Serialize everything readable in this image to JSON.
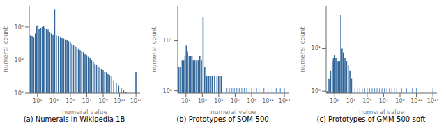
{
  "chart_data": [
    {
      "type": "bar",
      "title": "(a) Numerals in Wikipedia 1B",
      "x_label": "numeral value",
      "y_label": "numeral count",
      "log": "y",
      "grid": false,
      "xlim": [
        0.0,
        13.5
      ],
      "xticks": [
        {
          "value": 1,
          "label": "10¹"
        },
        {
          "value": 3,
          "label": "10³"
        },
        {
          "value": 5,
          "label": "10⁵"
        },
        {
          "value": 7,
          "label": "10⁷"
        },
        {
          "value": 9,
          "label": "10⁹"
        },
        {
          "value": 11,
          "label": "10¹¹"
        },
        {
          "value": 13,
          "label": "10¹³"
        }
      ],
      "ylim": [
        100.0,
        20000000.0
      ],
      "yticks": [
        {
          "value": 100,
          "label": "10²"
        },
        {
          "value": 10000,
          "label": "10⁴"
        },
        {
          "value": 1000000,
          "label": "10⁶"
        }
      ],
      "series": [
        {
          "type": "bar",
          "color": "#336699",
          "x": [
            0.15,
            0.35,
            0.55,
            0.75,
            0.9,
            1.05,
            1.2,
            1.4,
            1.6,
            1.75,
            1.9,
            2.1,
            2.3,
            2.5,
            2.7,
            2.9,
            3.1,
            3.3,
            3.55,
            3.8,
            4.0,
            4.2,
            4.4,
            4.6,
            4.8,
            5.0,
            5.2,
            5.4,
            5.6,
            5.8,
            6.0,
            6.2,
            6.4,
            6.6,
            6.8,
            7.0,
            7.2,
            7.4,
            7.6,
            7.8,
            8.0,
            8.2,
            8.4,
            8.6,
            8.8,
            9.0,
            9.2,
            9.4,
            9.6,
            9.8,
            10.0,
            10.3,
            10.6,
            10.9,
            11.2,
            11.5,
            11.8,
            12.1,
            12.5,
            13.0
          ],
          "values": [
            300000.0,
            280000.0,
            250000.0,
            400000.0,
            1100000.0,
            1300000.0,
            800000.0,
            900000.0,
            1000000.0,
            1100000.0,
            900000.0,
            800000.0,
            700000.0,
            500000.0,
            400000.0,
            350000.0,
            12000000.0,
            300000.0,
            280000.0,
            250000.0,
            220000.0,
            200000.0,
            180000.0,
            160000.0,
            140000.0,
            120000.0,
            100000.0,
            80000.0,
            70000.0,
            60000.0,
            50000.0,
            40000.0,
            35000.0,
            30000.0,
            25000.0,
            20000.0,
            16000.0,
            13000.0,
            10000.0,
            8000.0,
            6000.0,
            5000.0,
            4000.0,
            3500.0,
            3000.0,
            2500.0,
            2000.0,
            1800.0,
            1500.0,
            1200.0,
            1000.0,
            600.0,
            400.0,
            300.0,
            200.0,
            150.0,
            120.0,
            100.0,
            100.0,
            2000.0
          ]
        }
      ]
    },
    {
      "type": "bar",
      "title": "(b) Prototypes of SOM-500",
      "x_label": "numeral value",
      "y_label": "numeral count",
      "log": "y",
      "grid": false,
      "xlim": [
        0.0,
        13.5
      ],
      "xticks": [
        {
          "value": 1,
          "label": "10¹"
        },
        {
          "value": 3,
          "label": "10³"
        },
        {
          "value": 5,
          "label": "10⁵"
        },
        {
          "value": 7,
          "label": "10⁷"
        },
        {
          "value": 9,
          "label": "10⁹"
        },
        {
          "value": 11,
          "label": "10¹¹"
        },
        {
          "value": 13,
          "label": "10¹³"
        }
      ],
      "ylim": [
        0.9,
        50
      ],
      "yticks": [
        {
          "value": 1,
          "label": "10⁰"
        },
        {
          "value": 10,
          "label": "10¹"
        }
      ],
      "series": [
        {
          "type": "bar",
          "color": "#336699",
          "x": [
            0.15,
            0.35,
            0.55,
            0.75,
            0.9,
            1.05,
            1.2,
            1.4,
            1.6,
            1.75,
            1.9,
            2.1,
            2.3,
            2.5,
            2.7,
            2.9,
            3.1,
            3.3,
            3.55,
            3.8,
            4.0,
            4.2,
            4.5,
            4.8,
            5.0,
            5.3
          ],
          "values": [
            3,
            3,
            4,
            4,
            5,
            8,
            6,
            5,
            5,
            5,
            4,
            4,
            4,
            4,
            5,
            4,
            30,
            3,
            2,
            2,
            2,
            2,
            2,
            2,
            2,
            2
          ]
        },
        {
          "type": "scatter",
          "marker": "|",
          "color": "#6699cc",
          "x": [
            6.0,
            6.3,
            6.6,
            6.9,
            7.2,
            7.5,
            7.8,
            8.1,
            8.4,
            8.7,
            9.0,
            9.3,
            9.6,
            9.9,
            10.5,
            11.0,
            11.5,
            12.0,
            12.5,
            13.0
          ],
          "values": [
            1.0,
            1.0,
            1.0,
            1.0,
            1.0,
            1.0,
            1.0,
            1.0,
            1.0,
            1.0,
            1.0,
            1.0,
            1.0,
            1.0,
            1.0,
            1.0,
            1.0,
            1.0,
            1.0,
            1.0
          ]
        }
      ]
    },
    {
      "type": "bar",
      "title": "(c) Prototypes of GMM-500-soft",
      "x_label": "numeral value",
      "y_label": "numeral count",
      "log": "y",
      "grid": false,
      "xlim": [
        0.0,
        13.5
      ],
      "xticks": [
        {
          "value": 1,
          "label": "10¹"
        },
        {
          "value": 3,
          "label": "10³"
        },
        {
          "value": 5,
          "label": "10⁵"
        },
        {
          "value": 7,
          "label": "10⁷"
        },
        {
          "value": 9,
          "label": "10⁹"
        },
        {
          "value": 11,
          "label": "10¹¹"
        },
        {
          "value": 13,
          "label": "10¹³"
        }
      ],
      "ylim": [
        0.9,
        100
      ],
      "yticks": [
        {
          "value": 1,
          "label": "10⁰"
        },
        {
          "value": 10,
          "label": "10¹"
        }
      ],
      "series": [
        {
          "type": "bar",
          "color": "#336699",
          "x": [
            0.15,
            0.35,
            0.55,
            0.75,
            0.9,
            1.05,
            1.2,
            1.35,
            1.5,
            1.65,
            1.8,
            1.95,
            2.1,
            2.3,
            2.5,
            2.7,
            2.9,
            3.1
          ],
          "values": [
            1,
            2,
            3,
            5,
            6,
            7,
            6,
            5,
            5,
            5,
            60,
            10,
            8,
            6,
            5,
            4,
            3,
            2
          ]
        },
        {
          "type": "scatter",
          "marker": "|",
          "color": "#6699cc",
          "x": [
            3.5,
            3.8,
            4.1,
            4.4,
            4.7,
            5.0,
            5.3,
            5.6,
            5.9,
            6.2,
            6.5,
            6.8,
            7.1,
            7.4,
            7.7,
            8.0,
            8.3,
            8.6,
            9.2,
            9.8,
            10.5,
            11.0,
            13.0
          ],
          "values": [
            1.0,
            1.0,
            1.0,
            1.0,
            1.0,
            1.0,
            1.0,
            1.0,
            1.0,
            1.0,
            1.0,
            1.0,
            1.0,
            1.0,
            1.0,
            1.0,
            1.0,
            1.0,
            1.0,
            1.0,
            1.0,
            1.0,
            1.0
          ]
        }
      ]
    }
  ]
}
